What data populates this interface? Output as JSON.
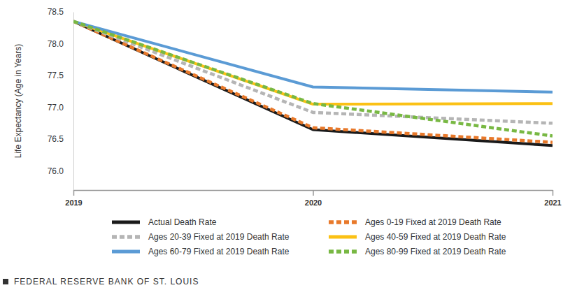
{
  "chart_data": {
    "type": "line",
    "y_label": "Life Expectancy (Age in Years)",
    "source": "FEDERAL RESERVE BANK OF ST. LOUIS",
    "x": [
      2019,
      2020,
      2021
    ],
    "xlim": [
      2019,
      2021
    ],
    "xticks": [
      2019,
      2020,
      2021
    ],
    "ylim": [
      75.7,
      78.5
    ],
    "yticks": [
      {
        "value": 76,
        "label": "76.0"
      },
      76.5,
      {
        "value": 77,
        "label": "77.0"
      },
      77.5,
      {
        "value": 78,
        "label": "78.0"
      },
      78.5
    ],
    "grid": false,
    "legend": "bottom",
    "series": [
      {
        "name": "Actual Death Rate",
        "color": "#1a1a1a",
        "line_style": "solid",
        "values": [
          78.35,
          76.65,
          76.4
        ]
      },
      {
        "name": "Ages 0-19 Fixed at 2019 Death Rate",
        "color": "#e8792b",
        "line_style": "dashed",
        "values": [
          78.35,
          76.68,
          76.45
        ]
      },
      {
        "name": "Ages 20-39 Fixed at 2019 Death Rate",
        "color": "#b5b5b5",
        "line_style": "dashed",
        "values": [
          78.35,
          76.92,
          76.75
        ]
      },
      {
        "name": "Ages 40-59 Fixed at 2019 Death Rate",
        "color": "#fbc115",
        "line_style": "solid",
        "values": [
          78.35,
          77.05,
          77.06
        ]
      },
      {
        "name": "Ages 60-79 Fixed at 2019 Death Rate",
        "color": "#5b9bd5",
        "line_style": "solid",
        "values": [
          78.35,
          77.32,
          77.24
        ]
      },
      {
        "name": "Ages 80-99 Fixed at 2019 Death Rate",
        "color": "#78b843",
        "line_style": "dashed",
        "values": [
          78.35,
          77.06,
          76.55
        ]
      }
    ]
  }
}
